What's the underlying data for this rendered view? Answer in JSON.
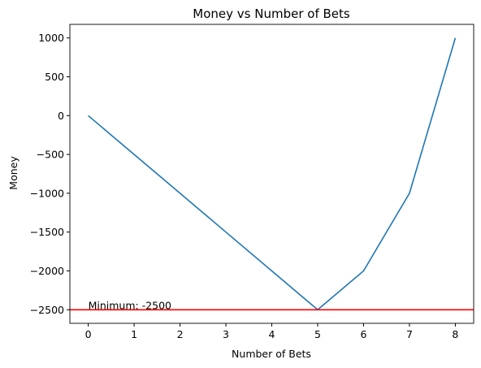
{
  "chart_data": {
    "type": "line",
    "title": "Money vs Number of Bets",
    "x_label": "Number of Bets",
    "y_label": "Money",
    "x": [
      0,
      1,
      2,
      3,
      4,
      5,
      6,
      7,
      8
    ],
    "values": [
      0,
      -500,
      -1000,
      -1500,
      -2000,
      -2500,
      -2000,
      -1000,
      1000
    ],
    "color": "#1f77b4",
    "xlim": [
      -0.4,
      8.4
    ],
    "xticks": [
      0,
      1,
      2,
      3,
      4,
      5,
      6,
      7,
      8
    ],
    "ylim": [
      -2675,
      1175
    ],
    "yticks": [
      {
        "value": -2500,
        "label": "−2500"
      },
      {
        "value": -2000,
        "label": "−2000"
      },
      {
        "value": -1500,
        "label": "−1500"
      },
      {
        "value": -1000,
        "label": "−1000"
      },
      {
        "value": -500,
        "label": "−500"
      },
      0,
      500,
      1000
    ],
    "hline": {
      "value": -2500,
      "color": "#ff0000"
    },
    "annotation": "Minimum: -2500",
    "grid": false
  }
}
